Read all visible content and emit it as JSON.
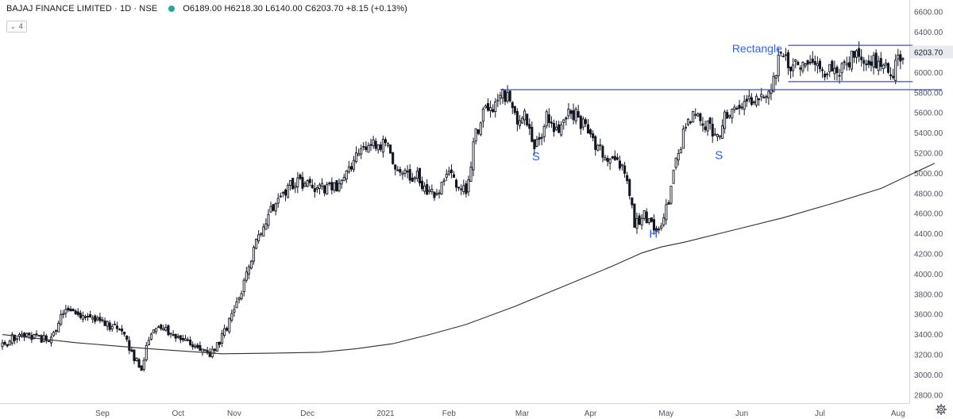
{
  "header": {
    "symbol_line": "BAJAJ FINANCE LIMITED · 1D · NSE",
    "ohlc_text": "O6189.00 H6218.30 L6140.00 C6203.70 +8.15 (+0.13%)",
    "status_dot_color": "#26a69a",
    "indicator_count": "4",
    "indicator_toggle_icon": "chevron-down-icon"
  },
  "settings_icon": "gear-icon",
  "colors": {
    "background": "#ffffff",
    "candle": "#131722",
    "moving_average": "#2f2f2f",
    "trendline": "#3f51b5",
    "annotation_text": "#2962ff",
    "axis_text": "#50535e",
    "last_price_label_bg": "#e8eaf0"
  },
  "chart_data": {
    "type": "candlestick",
    "title": "BAJAJ FINANCE LIMITED · 1D · NSE",
    "last_price": "6203.70",
    "y_axis": {
      "ylim": [
        2720,
        6720
      ],
      "ticks": [
        "6600.00",
        "6400.00",
        "6000.00",
        "5800.00",
        "5600.00",
        "5400.00",
        "5200.00",
        "5000.00",
        "4800.00",
        "4600.00",
        "4400.00",
        "4200.00",
        "4000.00",
        "3800.00",
        "3600.00",
        "3400.00",
        "3200.00",
        "3000.00",
        "2800.00"
      ]
    },
    "x_axis": {
      "labels": [
        "Sep",
        "Oct",
        "Nov",
        "Dec",
        "2021",
        "Feb",
        "Mar",
        "Apr",
        "May",
        "Jun",
        "Jul",
        "Aug"
      ],
      "label_positions": [
        43,
        74,
        97,
        127,
        159,
        185,
        215,
        243,
        274,
        305,
        337,
        369
      ]
    },
    "ma_series": {
      "points": [
        [
          0,
          3400
        ],
        [
          30,
          3320
        ],
        [
          60,
          3260
        ],
        [
          90,
          3210
        ],
        [
          110,
          3215
        ],
        [
          130,
          3225
        ],
        [
          145,
          3260
        ],
        [
          160,
          3310
        ],
        [
          175,
          3400
        ],
        [
          190,
          3500
        ],
        [
          210,
          3680
        ],
        [
          230,
          3880
        ],
        [
          250,
          4080
        ],
        [
          262,
          4210
        ],
        [
          270,
          4270
        ],
        [
          280,
          4320
        ],
        [
          300,
          4440
        ],
        [
          320,
          4560
        ],
        [
          340,
          4700
        ],
        [
          360,
          4850
        ],
        [
          382,
          5100
        ]
      ]
    },
    "annotations": [
      {
        "text": "S",
        "x": 217,
        "price": 5130
      },
      {
        "text": "H",
        "x": 265,
        "price": 4360
      },
      {
        "text": "S",
        "x": 292,
        "price": 5140
      },
      {
        "text": "Rectangle",
        "x": 299,
        "price": 6200
      }
    ],
    "trendlines": [
      {
        "name": "Neckline",
        "x1": 204,
        "y1": 5830,
        "x2": 385,
        "y2": 5830
      },
      {
        "name": "Rectangle top",
        "x1": 322,
        "y1": 6270,
        "x2": 373,
        "y2": 6270
      },
      {
        "name": "Rectangle bottom",
        "x1": 322,
        "y1": 5910,
        "x2": 373,
        "y2": 5910
      }
    ],
    "anchors": [
      [
        0,
        3290
      ],
      [
        5,
        3380
      ],
      [
        10,
        3380
      ],
      [
        20,
        3350
      ],
      [
        25,
        3650
      ],
      [
        30,
        3610
      ],
      [
        36,
        3580
      ],
      [
        43,
        3500
      ],
      [
        49,
        3440
      ],
      [
        54,
        3180
      ],
      [
        57,
        3080
      ],
      [
        60,
        3350
      ],
      [
        64,
        3480
      ],
      [
        70,
        3380
      ],
      [
        75,
        3330
      ],
      [
        80,
        3280
      ],
      [
        85,
        3200
      ],
      [
        90,
        3380
      ],
      [
        95,
        3620
      ],
      [
        100,
        4000
      ],
      [
        104,
        4300
      ],
      [
        108,
        4550
      ],
      [
        112,
        4700
      ],
      [
        116,
        4820
      ],
      [
        120,
        4920
      ],
      [
        125,
        4890
      ],
      [
        130,
        4850
      ],
      [
        135,
        4850
      ],
      [
        140,
        4920
      ],
      [
        143,
        5050
      ],
      [
        146,
        5200
      ],
      [
        150,
        5250
      ],
      [
        155,
        5300
      ],
      [
        158,
        5240
      ],
      [
        161,
        5080
      ],
      [
        165,
        5010
      ],
      [
        170,
        4960
      ],
      [
        175,
        4780
      ],
      [
        180,
        4860
      ],
      [
        183,
        5010
      ],
      [
        186,
        4870
      ],
      [
        190,
        4850
      ],
      [
        194,
        5380
      ],
      [
        197,
        5600
      ],
      [
        202,
        5680
      ],
      [
        205,
        5790
      ],
      [
        208,
        5740
      ],
      [
        211,
        5520
      ],
      [
        214,
        5600
      ],
      [
        217,
        5280
      ],
      [
        220,
        5320
      ],
      [
        223,
        5600
      ],
      [
        228,
        5400
      ],
      [
        232,
        5650
      ],
      [
        236,
        5550
      ],
      [
        240,
        5400
      ],
      [
        244,
        5240
      ],
      [
        248,
        5170
      ],
      [
        252,
        5100
      ],
      [
        256,
        4960
      ],
      [
        259,
        4500
      ],
      [
        263,
        4600
      ],
      [
        267,
        4460
      ],
      [
        270,
        4500
      ],
      [
        273,
        4700
      ],
      [
        276,
        5100
      ],
      [
        279,
        5400
      ],
      [
        283,
        5600
      ],
      [
        287,
        5500
      ],
      [
        290,
        5450
      ],
      [
        293,
        5380
      ],
      [
        296,
        5540
      ],
      [
        300,
        5640
      ],
      [
        304,
        5680
      ],
      [
        308,
        5750
      ],
      [
        312,
        5700
      ],
      [
        316,
        5920
      ],
      [
        319,
        6220
      ],
      [
        322,
        6100
      ],
      [
        326,
        6050
      ],
      [
        330,
        6080
      ],
      [
        335,
        6000
      ],
      [
        340,
        6020
      ],
      [
        345,
        6050
      ],
      [
        349,
        6200
      ],
      [
        352,
        6160
      ],
      [
        356,
        6130
      ],
      [
        361,
        6100
      ],
      [
        364,
        5910
      ],
      [
        367,
        6180
      ],
      [
        370,
        6200
      ]
    ],
    "bars": 370
  }
}
